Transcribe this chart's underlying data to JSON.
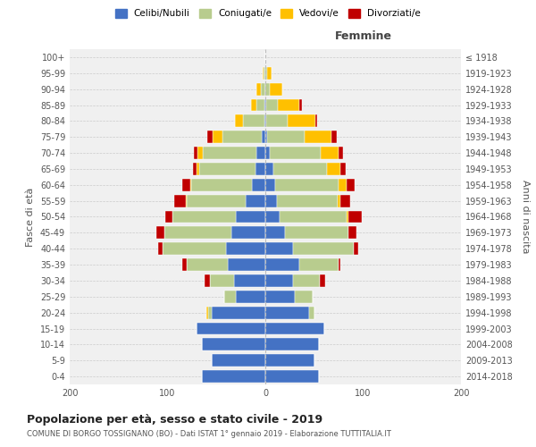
{
  "age_groups": [
    "0-4",
    "5-9",
    "10-14",
    "15-19",
    "20-24",
    "25-29",
    "30-34",
    "35-39",
    "40-44",
    "45-49",
    "50-54",
    "55-59",
    "60-64",
    "65-69",
    "70-74",
    "75-79",
    "80-84",
    "85-89",
    "90-94",
    "95-99",
    "100+"
  ],
  "birth_years": [
    "2014-2018",
    "2009-2013",
    "2004-2008",
    "1999-2003",
    "1994-1998",
    "1989-1993",
    "1984-1988",
    "1979-1983",
    "1974-1978",
    "1969-1973",
    "1964-1968",
    "1959-1963",
    "1954-1958",
    "1949-1953",
    "1944-1948",
    "1939-1943",
    "1934-1938",
    "1929-1933",
    "1924-1928",
    "1919-1923",
    "≤ 1918"
  ],
  "male": {
    "celibi": [
      65,
      55,
      65,
      70,
      55,
      30,
      32,
      38,
      40,
      35,
      30,
      20,
      14,
      10,
      9,
      4,
      1,
      1,
      0,
      0,
      0
    ],
    "coniugati": [
      0,
      0,
      0,
      0,
      3,
      12,
      25,
      42,
      65,
      68,
      65,
      60,
      62,
      58,
      55,
      40,
      22,
      8,
      5,
      2,
      0
    ],
    "vedovi": [
      0,
      0,
      0,
      0,
      2,
      0,
      0,
      0,
      0,
      0,
      0,
      1,
      1,
      2,
      5,
      10,
      8,
      6,
      4,
      1,
      0
    ],
    "divorziati": [
      0,
      0,
      0,
      0,
      0,
      0,
      5,
      5,
      5,
      8,
      7,
      12,
      8,
      4,
      4,
      5,
      0,
      0,
      0,
      0,
      0
    ]
  },
  "female": {
    "nubili": [
      55,
      50,
      55,
      60,
      45,
      30,
      28,
      35,
      28,
      20,
      15,
      12,
      10,
      8,
      5,
      2,
      1,
      1,
      0,
      0,
      0
    ],
    "coniugate": [
      0,
      0,
      0,
      0,
      5,
      18,
      28,
      40,
      62,
      65,
      68,
      62,
      65,
      55,
      52,
      38,
      22,
      12,
      5,
      2,
      0
    ],
    "vedove": [
      0,
      0,
      0,
      0,
      0,
      0,
      0,
      0,
      0,
      0,
      2,
      3,
      8,
      14,
      18,
      28,
      28,
      22,
      12,
      4,
      0
    ],
    "divorziate": [
      0,
      0,
      0,
      0,
      0,
      0,
      5,
      2,
      5,
      8,
      14,
      10,
      8,
      5,
      4,
      5,
      2,
      2,
      0,
      0,
      0
    ]
  },
  "colors": {
    "celibi": "#4472c4",
    "coniugati": "#b8cc8e",
    "vedovi": "#ffc000",
    "divorziati": "#c00000"
  },
  "title": "Popolazione per età, sesso e stato civile - 2019",
  "subtitle": "COMUNE DI BORGO TOSSIGNANO (BO) - Dati ISTAT 1° gennaio 2019 - Elaborazione TUTTITALIA.IT",
  "xlabel_right": "Femmine",
  "ylabel_left": "Fasce di età",
  "ylabel_right": "Anni di nascita",
  "xlim": 200,
  "legend_labels": [
    "Celibi/Nubili",
    "Coniugati/e",
    "Vedovi/e",
    "Divorziati/e"
  ],
  "background_color": "#ffffff",
  "plot_bg": "#f0f0f0",
  "grid_color": "#cccccc"
}
